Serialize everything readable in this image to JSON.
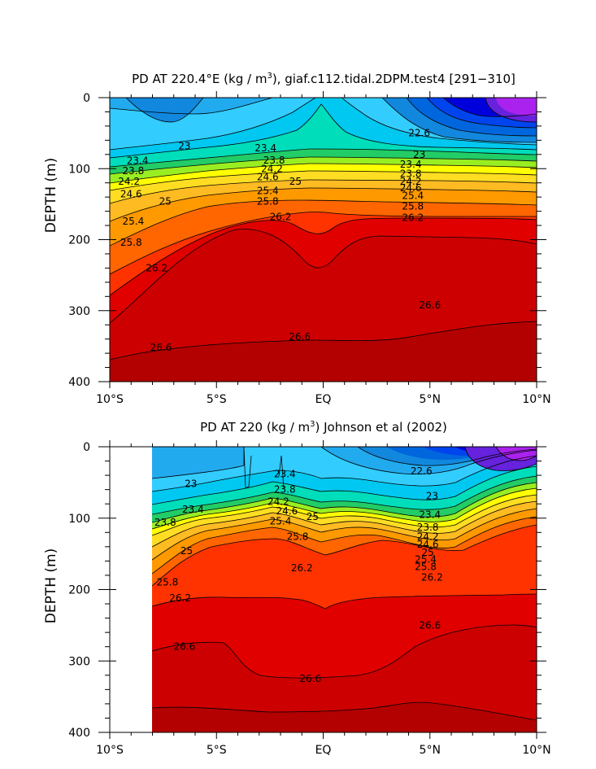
{
  "colors": {
    "bands": [
      "#b30000",
      "#cc0000",
      "#e00000",
      "#ff3300",
      "#ff6600",
      "#ff9900",
      "#ffbb22",
      "#ffdd22",
      "#ffff00",
      "#99ee22",
      "#22cc66",
      "#00ddbb",
      "#00c8f0",
      "#33ccff",
      "#22aaee",
      "#1188dd",
      "#0066dd",
      "#0044ee",
      "#0000dd",
      "#6622dd",
      "#aa22ee"
    ]
  },
  "chart_data": [
    {
      "type": "contour",
      "title": "PD AT 220.4°E (kg / m³), giaf.c112.tidal.2DPM.test4 [291−310]",
      "title_parts": [
        "PD AT 220.4°E (kg / m",
        "3",
        "), giaf.c112.tidal.2DPM.test4 [291−310]"
      ],
      "xlabel": "",
      "ylabel": "DEPTH (m)",
      "x_ticks": [
        "10°S",
        "5°S",
        "EQ",
        "5°N",
        "10°N"
      ],
      "y_ticks": [
        "0",
        "100",
        "200",
        "300",
        "400"
      ],
      "xlim": [
        -10,
        10
      ],
      "ylim": [
        400,
        0
      ],
      "data_xrange": [
        -10,
        10
      ],
      "contour_levels": [
        22.6,
        23.0,
        23.4,
        23.8,
        24.2,
        24.6,
        25.0,
        25.4,
        25.8,
        26.2,
        26.6
      ],
      "contour_labels": [
        {
          "text": "23",
          "x": -6.5,
          "depth": 68
        },
        {
          "text": "23.4",
          "x": -8.7,
          "depth": 89
        },
        {
          "text": "23.8",
          "x": -8.9,
          "depth": 103
        },
        {
          "text": "24.2",
          "x": -9.1,
          "depth": 118
        },
        {
          "text": "24.6",
          "x": -9.0,
          "depth": 136
        },
        {
          "text": "25",
          "x": -7.4,
          "depth": 146
        },
        {
          "text": "25.4",
          "x": -8.9,
          "depth": 174
        },
        {
          "text": "25.8",
          "x": -9.0,
          "depth": 204
        },
        {
          "text": "26.2",
          "x": -7.8,
          "depth": 240
        },
        {
          "text": "26.6",
          "x": -7.6,
          "depth": 352
        },
        {
          "text": "23.4",
          "x": -2.7,
          "depth": 71
        },
        {
          "text": "23.8",
          "x": -2.3,
          "depth": 88
        },
        {
          "text": "24.2",
          "x": -2.4,
          "depth": 100
        },
        {
          "text": "24.6",
          "x": -2.6,
          "depth": 112
        },
        {
          "text": "25",
          "x": -1.3,
          "depth": 118
        },
        {
          "text": "25.4",
          "x": -2.6,
          "depth": 131
        },
        {
          "text": "25.8",
          "x": -2.6,
          "depth": 146
        },
        {
          "text": "26.2",
          "x": -2.0,
          "depth": 168
        },
        {
          "text": "26.6",
          "x": -1.1,
          "depth": 337
        },
        {
          "text": "22.6",
          "x": 4.5,
          "depth": 50
        },
        {
          "text": "23",
          "x": 4.5,
          "depth": 80
        },
        {
          "text": "23.4",
          "x": 4.1,
          "depth": 94
        },
        {
          "text": "23.8",
          "x": 4.1,
          "depth": 107
        },
        {
          "text": "24.2",
          "x": 4.1,
          "depth": 118
        },
        {
          "text": "24.6",
          "x": 4.1,
          "depth": 127
        },
        {
          "text": "25.4",
          "x": 4.2,
          "depth": 138
        },
        {
          "text": "25.8",
          "x": 4.2,
          "depth": 153
        },
        {
          "text": "26.2",
          "x": 4.2,
          "depth": 169
        },
        {
          "text": "26.6",
          "x": 5.0,
          "depth": 292
        }
      ]
    },
    {
      "type": "contour",
      "title": "PD AT 220 (kg / m³) Johnson et al (2002)",
      "title_parts": [
        "PD AT 220 (kg / m",
        "3",
        ") Johnson et al (2002)"
      ],
      "xlabel": "",
      "ylabel": "DEPTH (m)",
      "x_ticks": [
        "10°S",
        "5°S",
        "EQ",
        "5°N",
        "10°N"
      ],
      "y_ticks": [
        "0",
        "100",
        "200",
        "300",
        "400"
      ],
      "xlim": [
        -10,
        10
      ],
      "ylim": [
        400,
        0
      ],
      "data_xrange": [
        -8,
        10
      ],
      "contour_levels": [
        22.6,
        23.0,
        23.4,
        23.8,
        24.2,
        24.6,
        25.0,
        25.4,
        25.8,
        26.2,
        26.6
      ],
      "contour_labels": [
        {
          "text": "23",
          "x": -6.2,
          "depth": 52
        },
        {
          "text": "23.4",
          "x": -6.1,
          "depth": 88
        },
        {
          "text": "23.8",
          "x": -7.4,
          "depth": 106
        },
        {
          "text": "25",
          "x": -6.4,
          "depth": 146
        },
        {
          "text": "25.8",
          "x": -7.3,
          "depth": 190
        },
        {
          "text": "26.2",
          "x": -6.7,
          "depth": 212
        },
        {
          "text": "26.6",
          "x": -6.5,
          "depth": 280
        },
        {
          "text": "23.4",
          "x": -1.8,
          "depth": 38
        },
        {
          "text": "23.8",
          "x": -1.8,
          "depth": 60
        },
        {
          "text": "24.2",
          "x": -2.1,
          "depth": 77
        },
        {
          "text": "24.6",
          "x": -1.7,
          "depth": 90
        },
        {
          "text": "25",
          "x": -0.5,
          "depth": 98
        },
        {
          "text": "25.4",
          "x": -2.0,
          "depth": 104
        },
        {
          "text": "25.8",
          "x": -1.2,
          "depth": 126
        },
        {
          "text": "26.2",
          "x": -1.0,
          "depth": 170
        },
        {
          "text": "26.6",
          "x": -0.6,
          "depth": 325
        },
        {
          "text": "22.6",
          "x": 4.6,
          "depth": 34
        },
        {
          "text": "23",
          "x": 5.1,
          "depth": 69
        },
        {
          "text": "23.4",
          "x": 5.0,
          "depth": 95
        },
        {
          "text": "23.8",
          "x": 4.9,
          "depth": 113
        },
        {
          "text": "24.2",
          "x": 4.9,
          "depth": 126
        },
        {
          "text": "24.6",
          "x": 4.9,
          "depth": 137
        },
        {
          "text": "25",
          "x": 4.9,
          "depth": 148
        },
        {
          "text": "25.4",
          "x": 4.8,
          "depth": 158
        },
        {
          "text": "25.8",
          "x": 4.8,
          "depth": 168
        },
        {
          "text": "26.2",
          "x": 5.1,
          "depth": 183
        },
        {
          "text": "26.6",
          "x": 5.0,
          "depth": 250
        }
      ]
    }
  ]
}
